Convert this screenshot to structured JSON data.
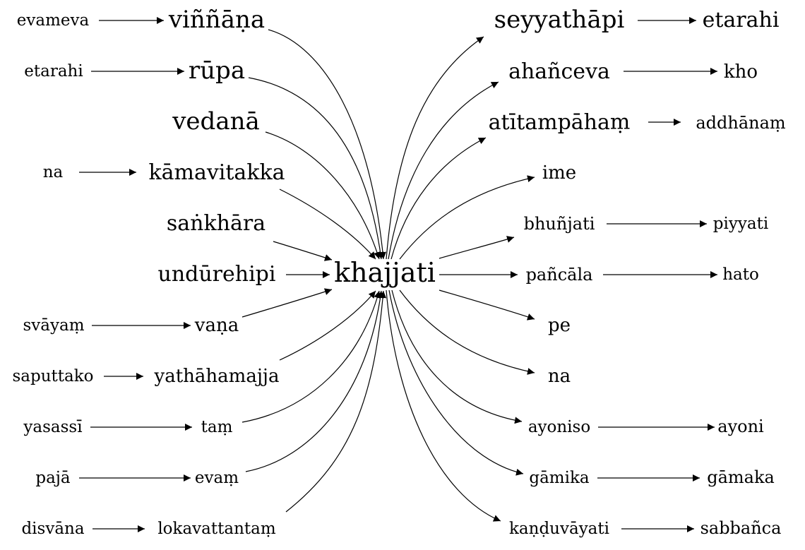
{
  "center": "khajjati",
  "inbound": [
    {
      "text": "viññāṇa",
      "source": "evameva"
    },
    {
      "text": "rūpa",
      "source": "etarahi"
    },
    {
      "text": "vedanā",
      "source": ""
    },
    {
      "text": "kāmavitakka",
      "source": "na"
    },
    {
      "text": "saṅkhāra",
      "source": ""
    },
    {
      "text": "undūrehipi",
      "source": ""
    },
    {
      "text": "vaṇa",
      "source": "svāyaṃ"
    },
    {
      "text": "yathāhamajja",
      "source": "saputtako"
    },
    {
      "text": "taṃ",
      "source": "yasassī"
    },
    {
      "text": "evaṃ",
      "source": "pajā"
    },
    {
      "text": "lokavattantaṃ",
      "source": "disvāna"
    }
  ],
  "outbound": [
    {
      "text": "seyyathāpi",
      "target": "etarahi"
    },
    {
      "text": "ahañceva",
      "target": "kho"
    },
    {
      "text": "atītampāhaṃ",
      "target": "addhānaṃ"
    },
    {
      "text": "ime",
      "target": ""
    },
    {
      "text": "bhuñjati",
      "target": "piyyati"
    },
    {
      "text": "pañcāla",
      "target": "hato"
    },
    {
      "text": "pe",
      "target": ""
    },
    {
      "text": "na",
      "target": ""
    },
    {
      "text": "ayoniso",
      "target": "ayoni"
    },
    {
      "text": "gāmika",
      "target": "gāmaka"
    },
    {
      "text": "kaṇḍuvāyati",
      "target": "sabbañca"
    }
  ]
}
